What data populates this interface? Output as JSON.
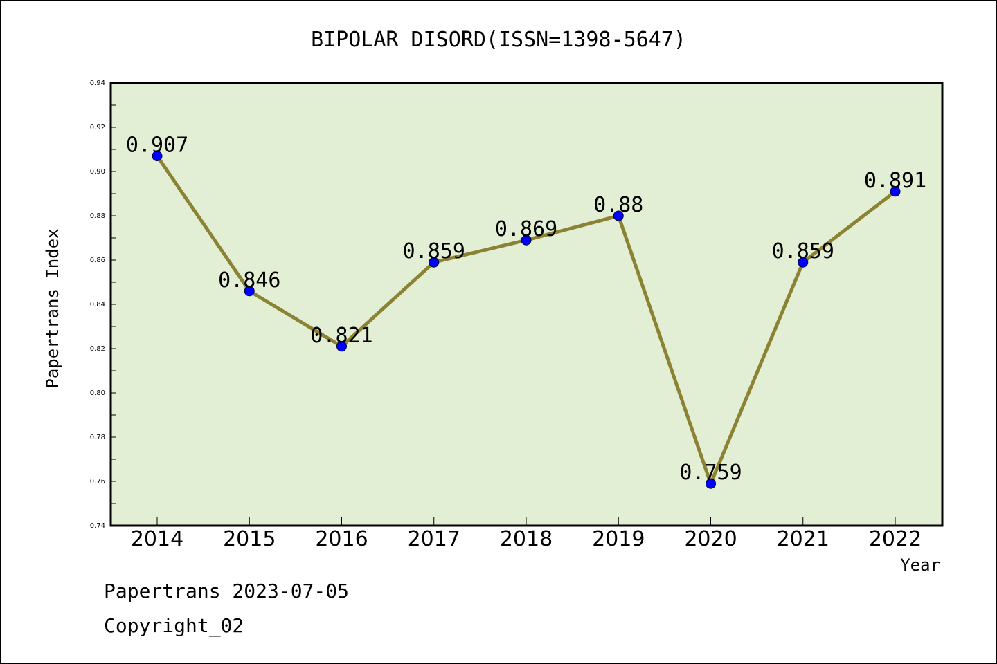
{
  "chart_data": {
    "type": "line",
    "title": "BIPOLAR DISORD(ISSN=1398-5647)",
    "xlabel": "Year",
    "ylabel": "Papertrans Index",
    "categories": [
      "2014",
      "2015",
      "2016",
      "2017",
      "2018",
      "2019",
      "2020",
      "2021",
      "2022"
    ],
    "values": [
      0.907,
      0.846,
      0.821,
      0.859,
      0.869,
      0.88,
      0.759,
      0.859,
      0.891
    ],
    "data_labels": [
      "0.907",
      "0.846",
      "0.821",
      "0.859",
      "0.869",
      "0.88",
      "0.759",
      "0.859",
      "0.891"
    ],
    "ylim": [
      0.74,
      0.94
    ],
    "yticks": [
      "0.74",
      "0.76",
      "0.78",
      "0.80",
      "0.82",
      "0.84",
      "0.86",
      "0.88",
      "0.90",
      "0.92",
      "0.94"
    ],
    "line_color": "#8b8233",
    "marker_color": "#0000ff",
    "plot_background": "#e2efd5",
    "grid": false
  },
  "footer": {
    "date_line": "Papertrans 2023-07-05",
    "copyright_line": "Copyright_02"
  }
}
